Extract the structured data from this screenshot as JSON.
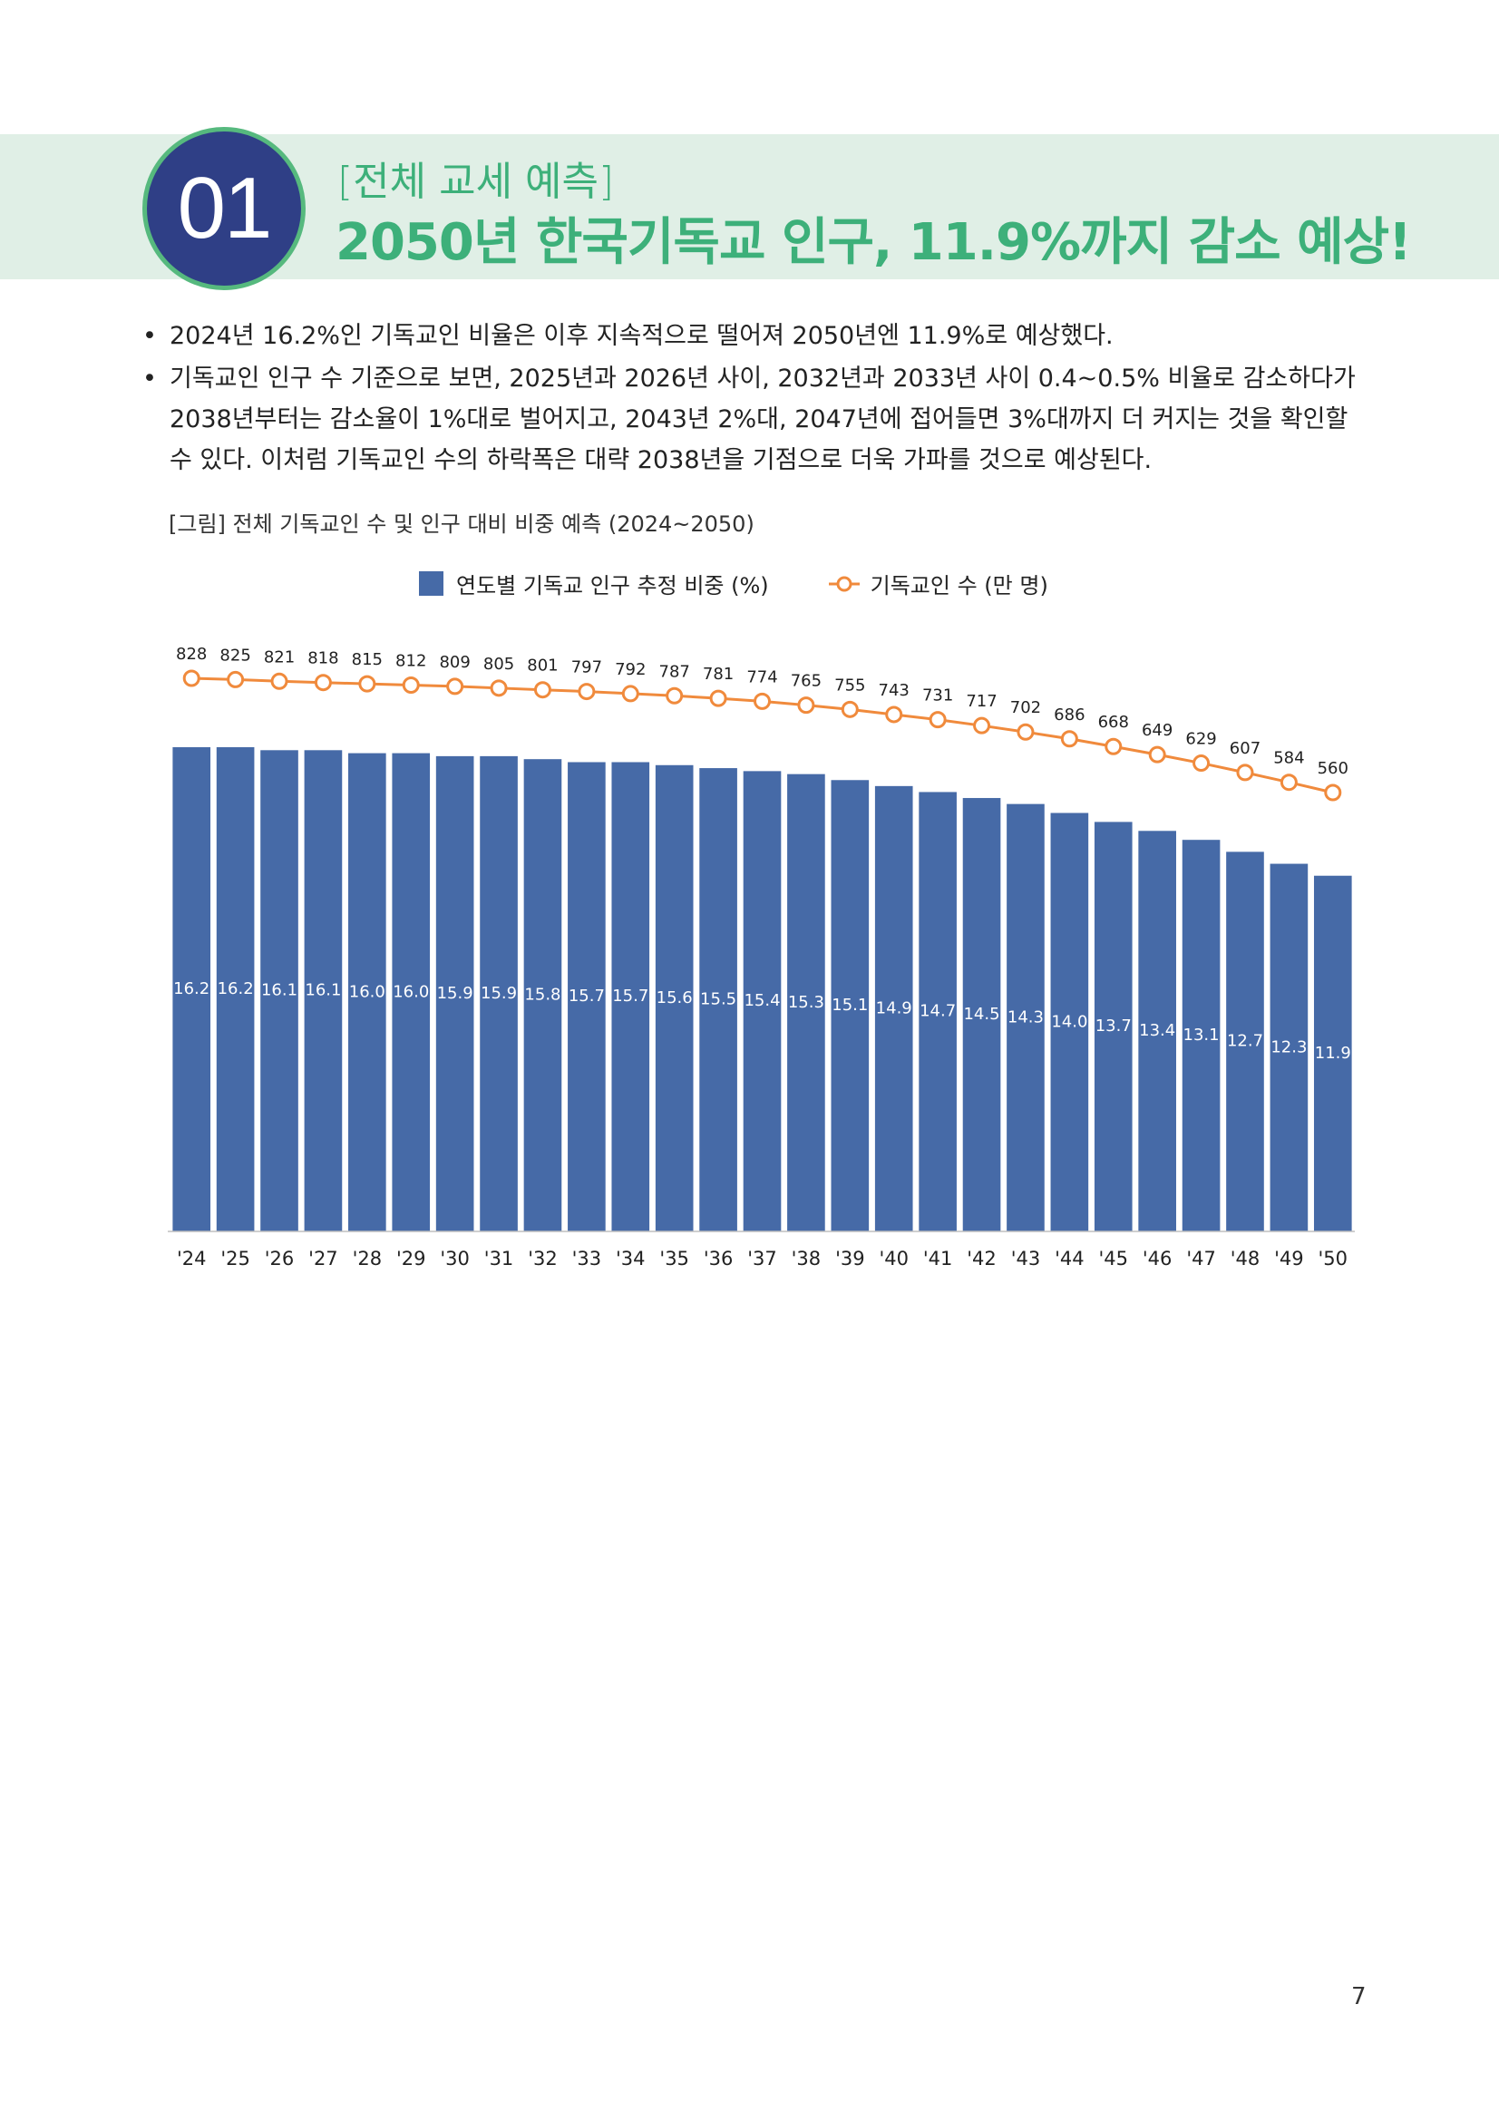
{
  "header": {
    "number": "01",
    "subtitle": "[전체 교세 예측]",
    "title": "2050년 한국기독교 인구, 11.9%까지 감소 예상!"
  },
  "bullets": [
    "2024년 16.2%인 기독교인 비율은 이후 지속적으로 떨어져 2050년엔 11.9%로 예상했다.",
    "기독교인 인구 수 기준으로 보면, 2025년과 2026년 사이, 2032년과 2033년 사이 0.4~0.5% 비율로 감소하다가 2038년부터는 감소율이 1%대로 벌어지고, 2043년 2%대, 2047년에 접어들면 3%대까지 더 커지는 것을 확인할 수 있다. 이처럼 기독교인 수의 하락폭은 대략 2038년을 기점으로 더욱 가파를 것으로 예상된다."
  ],
  "figure_caption": "[그림] 전체 기독교인 수 및 인구 대비 비중 예측 (2024~2050)",
  "legend": {
    "bar_label": "연도별 기독교 인구 추정 비중 (%)",
    "line_label": "기독교인 수 (만 명)"
  },
  "colors": {
    "bar": "#466aa7",
    "line": "#f08a3c",
    "accent_green": "#3db07a",
    "circle": "#2f3f86"
  },
  "chart_data": {
    "type": "bar+line",
    "categories": [
      "'24",
      "'25",
      "'26",
      "'27",
      "'28",
      "'29",
      "'30",
      "'31",
      "'32",
      "'33",
      "'34",
      "'35",
      "'36",
      "'37",
      "'38",
      "'39",
      "'40",
      "'41",
      "'42",
      "'43",
      "'44",
      "'45",
      "'46",
      "'47",
      "'48",
      "'49",
      "'50"
    ],
    "series": [
      {
        "name": "연도별 기독교 인구 추정 비중 (%)",
        "type": "bar",
        "values": [
          16.2,
          16.2,
          16.1,
          16.1,
          16.0,
          16.0,
          15.9,
          15.9,
          15.8,
          15.7,
          15.7,
          15.6,
          15.5,
          15.4,
          15.3,
          15.1,
          14.9,
          14.7,
          14.5,
          14.3,
          14.0,
          13.7,
          13.4,
          13.1,
          12.7,
          12.3,
          11.9
        ]
      },
      {
        "name": "기독교인 수 (만 명)",
        "type": "line",
        "values": [
          828,
          825,
          821,
          818,
          815,
          812,
          809,
          805,
          801,
          797,
          792,
          787,
          781,
          774,
          765,
          755,
          743,
          731,
          717,
          702,
          686,
          668,
          649,
          629,
          607,
          584,
          560
        ]
      }
    ],
    "bar_labels": [
      "16.2",
      "16.2",
      "16.1",
      "16.1",
      "16.0",
      "16.0",
      "15.9",
      "15.9",
      "15.8",
      "15.7",
      "15.7",
      "15.6",
      "15.5",
      "15.4",
      "15.3",
      "15.1",
      "14.9",
      "14.7",
      "14.5",
      "14.3",
      "14.0",
      "13.7",
      "13.4",
      "13.1",
      "12.7",
      "12.3",
      "11.9"
    ],
    "grid": false,
    "legend_position": "top-center"
  },
  "page_number": "7"
}
